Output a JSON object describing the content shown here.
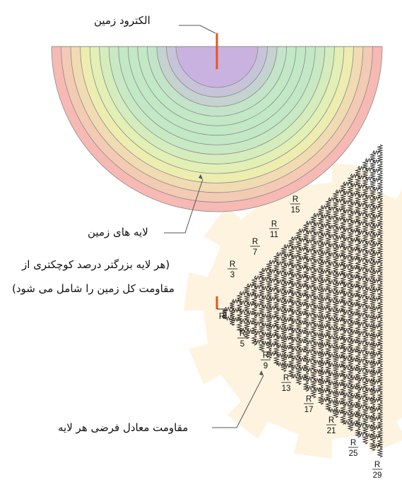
{
  "labels": {
    "electrode": "الکترود زمین",
    "soil_layers": "لایه های زمین",
    "note_line1": "(هر لایه بزرگتر درصد کوچکتری از",
    "note_line2": "مقاومت کل زمین را شامل می شود)",
    "equivalent_resistance": "مقاومت معادل فرضی هر لایه"
  },
  "resistor_labels": [
    {
      "num": "R",
      "den": ""
    },
    {
      "num": "R",
      "den": "3"
    },
    {
      "num": "R",
      "den": "5"
    },
    {
      "num": "R",
      "den": "7"
    },
    {
      "num": "R",
      "den": "9"
    },
    {
      "num": "R",
      "den": "11"
    },
    {
      "num": "R",
      "den": "13"
    },
    {
      "num": "R",
      "den": "15"
    },
    {
      "num": "R",
      "den": "17"
    },
    {
      "num": "R",
      "den": "21"
    },
    {
      "num": "R",
      "den": "25"
    },
    {
      "num": "R",
      "den": "29"
    }
  ],
  "colors": {
    "electrode": "#e8541a",
    "layer_inner": "#c9b2e0",
    "layer_mid": "#c2e8c6",
    "layer_yellow": "#ecf1b0",
    "layer_outer": "#f6b9b4",
    "layer_line": "#8a8a8a",
    "wire": "#222222",
    "watermark": "#fdf3df"
  },
  "layer_count": 14
}
